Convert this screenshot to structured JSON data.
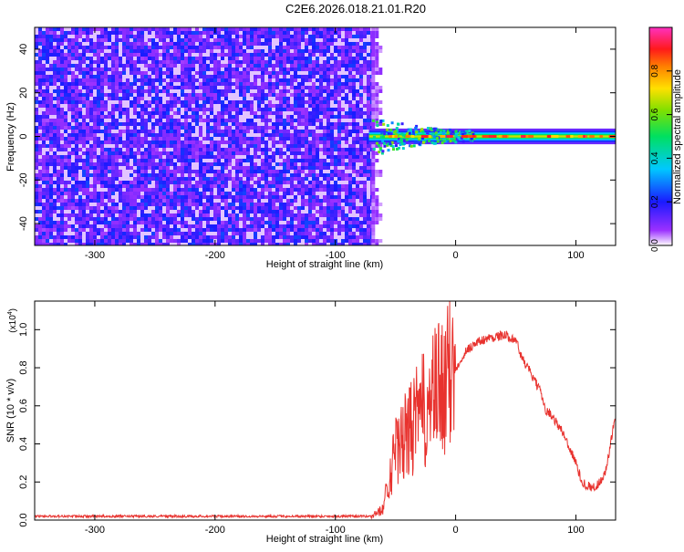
{
  "title": "C2E6.2026.018.21.01.R20",
  "chart_data": [
    {
      "type": "heatmap",
      "name": "spectrogram",
      "xlabel": "Height of straight line (km)",
      "ylabel": "Frequency (Hz)",
      "xlim": [
        -350,
        133
      ],
      "ylim": [
        -50,
        50
      ],
      "xticks": [
        -300,
        -200,
        -100,
        0,
        100
      ],
      "yticks": [
        -40,
        -20,
        0,
        20,
        40
      ],
      "noise_region": {
        "x_range": [
          -350,
          -70
        ],
        "y_range": [
          -50,
          50
        ],
        "amplitude_range": [
          0.05,
          0.3
        ]
      },
      "signal_band": {
        "x_range": [
          -72,
          133
        ],
        "center_freq": 0,
        "half_width": 2,
        "peak_amplitude": 0.95
      },
      "colorbar": {
        "label": "Normalized spectral amplitude",
        "range": [
          0.0,
          1.0
        ],
        "ticks": [
          "0.0",
          "0.2",
          "0.4",
          "0.6",
          "0.8"
        ],
        "tick_values": [
          0.0,
          0.2,
          0.4,
          0.6,
          0.8
        ]
      }
    },
    {
      "type": "line",
      "name": "snr",
      "xlabel": "Height of straight line (km)",
      "ylabel": "SNR (10 * v/v)",
      "scale_label": "(x10",
      "scale_exponent": "4",
      "xlim": [
        -350,
        133
      ],
      "ylim": [
        0,
        1.15
      ],
      "xticks": [
        -300,
        -200,
        -100,
        0,
        100
      ],
      "yticks": [
        "0.0",
        "0.2",
        "0.4",
        "0.6",
        "0.8",
        "1.0"
      ],
      "ytick_values": [
        0.0,
        0.2,
        0.4,
        0.6,
        0.8,
        1.0
      ],
      "color": "#e8322e",
      "envelope": {
        "x": [
          -350,
          -70,
          -60,
          -55,
          -50,
          -45,
          -40,
          -35,
          -30,
          -25,
          -20,
          -15,
          -10,
          -5,
          0,
          5,
          10,
          20,
          30,
          40,
          50,
          55,
          60,
          70,
          75,
          80,
          90,
          100,
          105,
          110,
          115,
          120,
          125,
          133
        ],
        "y": [
          0.02,
          0.02,
          0.06,
          0.25,
          0.35,
          0.4,
          0.45,
          0.5,
          0.55,
          0.58,
          0.62,
          0.68,
          0.72,
          0.76,
          0.8,
          0.85,
          0.9,
          0.94,
          0.96,
          0.97,
          0.95,
          0.85,
          0.8,
          0.68,
          0.58,
          0.55,
          0.45,
          0.3,
          0.2,
          0.18,
          0.17,
          0.2,
          0.26,
          0.55
        ]
      }
    }
  ]
}
